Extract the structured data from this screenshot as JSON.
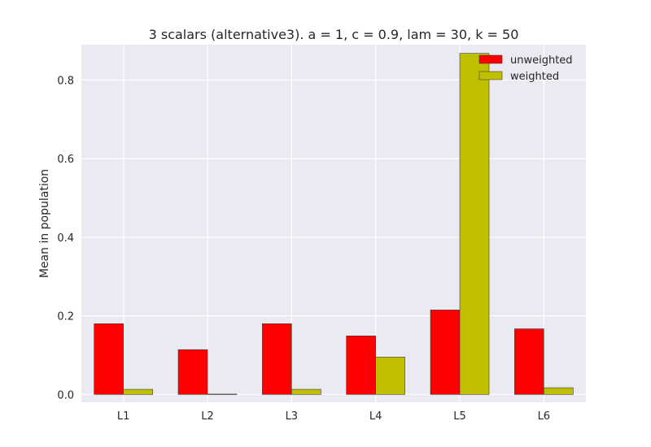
{
  "chart_data": {
    "type": "bar",
    "title": "3 scalars (alternative3). a = 1, c = 0.9, lam = 30, k = 50",
    "xlabel": "",
    "ylabel": "Mean in population",
    "categories": [
      "L1",
      "L2",
      "L3",
      "L4",
      "L5",
      "L6"
    ],
    "series": [
      {
        "name": "unweighted",
        "color": "#ff0000",
        "values": [
          0.18,
          0.114,
          0.18,
          0.149,
          0.215,
          0.167
        ]
      },
      {
        "name": "weighted",
        "color": "#bfbf00",
        "values": [
          0.013,
          0.001,
          0.013,
          0.095,
          0.868,
          0.017
        ]
      }
    ],
    "ylim": [
      -0.02,
      0.89
    ],
    "yticks": [
      "0.0",
      "0.2",
      "0.4",
      "0.6",
      "0.8"
    ],
    "grid": true,
    "legend_position": "top-right",
    "background_color": "#eaeaf2"
  }
}
